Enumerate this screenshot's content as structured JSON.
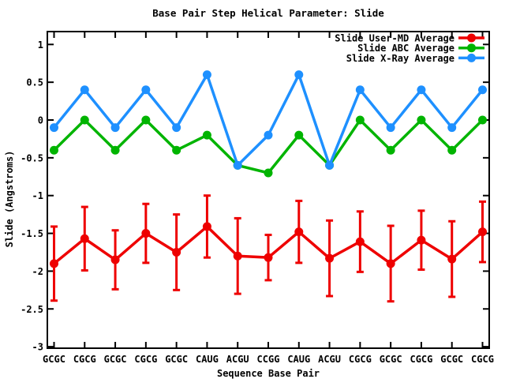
{
  "chart_data": {
    "type": "line",
    "title": "Base Pair Step Helical Parameter: Slide",
    "xlabel": "Sequence Base Pair",
    "ylabel": "Slide (Angstroms)",
    "ylim": [
      -3,
      1
    ],
    "ytick_step": 0.5,
    "yticks": [
      1,
      0.5,
      0,
      -0.5,
      -1,
      -1.5,
      -2,
      -2.5,
      -3
    ],
    "ytick_labels": [
      "1",
      "0.5",
      "0",
      "-0.5",
      "-1",
      "-1.5",
      "-2",
      "-2.5",
      "-3"
    ],
    "categories": [
      "GCGC",
      "CGCG",
      "GCGC",
      "CGCG",
      "GCGC",
      "CAUG",
      "ACGU",
      "CCGG",
      "CAUG",
      "ACGU",
      "CGCG",
      "GCGC",
      "CGCG",
      "GCGC",
      "CGCG"
    ],
    "grid": false,
    "legend_position": "top-right-inside",
    "background_color": "#ffffff",
    "text_color": "#000000",
    "border_color": "#000000",
    "series": [
      {
        "name": "Slide User-MD Average",
        "color": "#ee0000",
        "marker": "circle",
        "has_error_bars": true,
        "values": [
          -1.9,
          -1.57,
          -1.85,
          -1.5,
          -1.75,
          -1.41,
          -1.8,
          -1.82,
          -1.48,
          -1.83,
          -1.61,
          -1.9,
          -1.59,
          -1.84,
          -1.48
        ],
        "error": [
          0.49,
          0.42,
          0.39,
          0.39,
          0.5,
          0.41,
          0.5,
          0.3,
          0.41,
          0.5,
          0.4,
          0.5,
          0.39,
          0.5,
          0.4
        ]
      },
      {
        "name": "Slide ABC Average",
        "color": "#00b400",
        "marker": "circle",
        "has_error_bars": false,
        "values": [
          -0.4,
          0,
          -0.4,
          0,
          -0.4,
          -0.2,
          -0.6,
          -0.7,
          -0.2,
          -0.6,
          0,
          -0.4,
          0,
          -0.4,
          0
        ]
      },
      {
        "name": "Slide X-Ray Average",
        "color": "#1e90ff",
        "marker": "circle",
        "has_error_bars": false,
        "values": [
          -0.1,
          0.4,
          -0.1,
          0.4,
          -0.1,
          0.6,
          -0.6,
          -0.2,
          0.6,
          -0.6,
          0.4,
          -0.1,
          0.4,
          -0.1,
          0.4
        ]
      }
    ]
  }
}
